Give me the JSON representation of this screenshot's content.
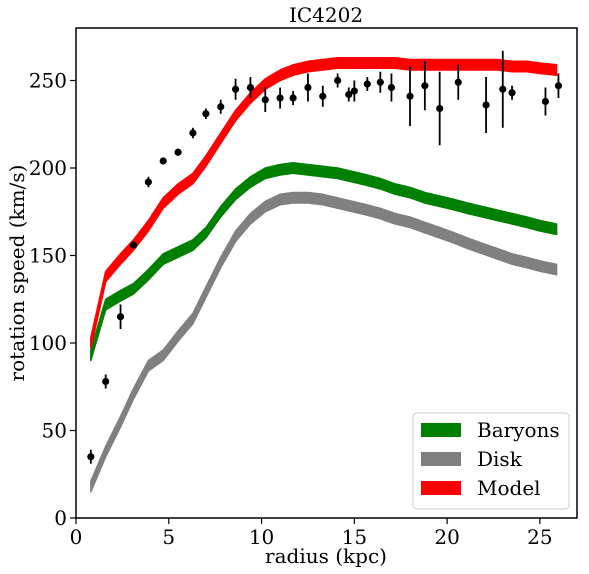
{
  "chart_data": {
    "type": "line",
    "title": "IC4202",
    "xlabel": "radius (kpc)",
    "ylabel": "rotation speed (km/s)",
    "xlim": [
      0,
      27
    ],
    "ylim": [
      0,
      280
    ],
    "x_ticks": [
      0,
      5,
      10,
      15,
      20,
      25
    ],
    "y_ticks": [
      0,
      50,
      100,
      150,
      200,
      250
    ],
    "x_tick_labels": [
      "0",
      "5",
      "10",
      "15",
      "20",
      "25"
    ],
    "y_tick_labels": [
      "0",
      "50",
      "100",
      "150",
      "200",
      "250"
    ],
    "grid": false,
    "legend_position": "bottom-right",
    "series": [
      {
        "name": "Baryons",
        "color": "#008000",
        "style": "band",
        "x": [
          0.8,
          1.6,
          2.4,
          3.1,
          3.9,
          4.7,
          5.5,
          6.3,
          7.0,
          7.8,
          8.6,
          9.4,
          10.2,
          11.0,
          11.7,
          12.5,
          13.3,
          14.1,
          14.9,
          15.7,
          16.4,
          17.2,
          18.0,
          18.8,
          19.6,
          20.4,
          21.1,
          21.9,
          22.7,
          23.5,
          24.3,
          25.0,
          25.9
        ],
        "y": [
          93,
          122,
          127,
          131,
          139,
          148,
          152,
          156,
          163,
          175,
          185,
          192,
          197,
          199,
          200,
          199,
          198,
          197,
          195,
          193,
          191,
          188,
          186,
          183,
          181,
          179,
          177,
          175,
          173,
          171,
          169,
          167,
          165
        ],
        "half_width": 3
      },
      {
        "name": "Disk",
        "color": "#808080",
        "style": "band",
        "x": [
          0.8,
          1.6,
          2.4,
          3.1,
          3.9,
          4.7,
          5.5,
          6.3,
          7.0,
          7.8,
          8.6,
          9.4,
          10.2,
          11.0,
          11.7,
          12.5,
          13.3,
          14.1,
          14.9,
          15.7,
          16.4,
          17.2,
          18.0,
          18.8,
          19.6,
          20.4,
          21.1,
          21.9,
          22.7,
          23.5,
          24.3,
          25.0,
          25.9
        ],
        "y": [
          18,
          38,
          55,
          71,
          87,
          93,
          104,
          114,
          129,
          146,
          161,
          171,
          178,
          182,
          183,
          183,
          182,
          180,
          178,
          176,
          174,
          171,
          169,
          166,
          163,
          160,
          157,
          154,
          151,
          148,
          146,
          144,
          142
        ],
        "half_width": 3
      },
      {
        "name": "Model",
        "color": "#ff0000",
        "style": "band",
        "x": [
          0.8,
          1.6,
          2.4,
          3.1,
          3.9,
          4.7,
          5.5,
          6.3,
          7.0,
          7.8,
          8.6,
          9.4,
          10.2,
          11.0,
          11.7,
          12.5,
          13.3,
          14.1,
          14.9,
          15.7,
          16.4,
          17.2,
          18.0,
          18.8,
          19.6,
          20.4,
          21.1,
          21.9,
          22.7,
          23.5,
          24.3,
          25.0,
          25.9
        ],
        "y": [
          100,
          138,
          148,
          156,
          167,
          180,
          188,
          194,
          204,
          217,
          230,
          240,
          248,
          253,
          256,
          258,
          259,
          260,
          260,
          260,
          260,
          260,
          259,
          259,
          259,
          259,
          259,
          259,
          259,
          258,
          258,
          257,
          256
        ],
        "half_width": 3
      },
      {
        "name": "",
        "color": "#000000",
        "style": "errorbar",
        "x": [
          0.8,
          1.6,
          2.4,
          3.1,
          3.9,
          4.7,
          5.5,
          6.3,
          7.0,
          7.8,
          8.6,
          9.4,
          10.2,
          11.0,
          11.7,
          12.5,
          13.3,
          14.1,
          14.7,
          15.0,
          15.7,
          16.4,
          17.0,
          18.0,
          18.8,
          19.6,
          20.6,
          22.1,
          23.0,
          23.5,
          25.3,
          26.0
        ],
        "y": [
          35,
          78,
          115,
          156,
          192,
          204,
          209,
          220,
          231,
          235,
          245,
          246,
          239,
          240,
          240,
          246,
          241,
          250,
          242,
          244,
          248,
          249,
          246,
          241,
          247,
          234,
          249,
          236,
          245,
          243,
          238,
          247
        ],
        "yerr": [
          4,
          4,
          7,
          2,
          3,
          2,
          2,
          3,
          3,
          4,
          6,
          6,
          7,
          6,
          4,
          8,
          6,
          4,
          4,
          6,
          4,
          6,
          8,
          17,
          14,
          21,
          10,
          16,
          22,
          4,
          8,
          7
        ]
      }
    ]
  }
}
